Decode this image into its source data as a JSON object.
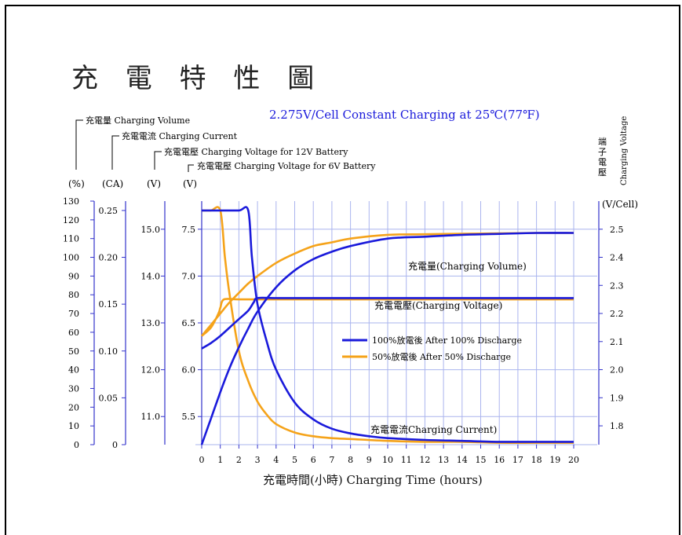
{
  "title": "充 電 特 性 圖",
  "subtitle": "2.275V/Cell Constant Charging at 25℃(77℉)",
  "axis_legends": [
    "充電量 Charging Volume",
    "充電電流 Charging Current",
    "充電電壓 Charging Voltage for 12V Battery",
    "充電電壓 Charging Voltage for 6V Battery"
  ],
  "axis_units": [
    "(%)",
    "(CA)",
    "(V)",
    "(V)"
  ],
  "right_axis_title": {
    "cjk": "端子電壓",
    "en": "Charging Voltage",
    "unit": "(V/Cell)"
  },
  "xlabel": "充電時間(小時)  Charging Time (hours)",
  "legend": [
    {
      "label": "100%放電後  After 100% Discharge",
      "color": "#1a1adb"
    },
    {
      "label": "50%放電後  After   50% Discharge",
      "color": "#f5a31a"
    }
  ],
  "curve_labels": {
    "volume": "充電量(Charging Volume)",
    "voltage": "充電電壓(Charging Voltage)",
    "current": "充電電流Charging Current)"
  },
  "colors": {
    "series_100": "#1a1adb",
    "series_50": "#f5a31a",
    "axis": "#3333cc",
    "grid": "#aab4ee"
  },
  "chart_data": {
    "type": "line",
    "x_ticks": [
      0,
      1,
      2,
      3,
      4,
      5,
      6,
      7,
      8,
      9,
      10,
      11,
      12,
      13,
      14,
      15,
      16,
      17,
      18,
      19,
      20
    ],
    "xlim": [
      0,
      20
    ],
    "grid": true,
    "legend_position": "center-right",
    "axes": {
      "volume_pct": {
        "ticks": [
          0,
          10,
          20,
          30,
          40,
          50,
          60,
          70,
          80,
          90,
          100,
          110,
          120,
          130
        ],
        "ylim": [
          0,
          130
        ]
      },
      "current_ca": {
        "ticks": [
          0,
          0.05,
          0.1,
          0.15,
          0.2,
          0.25
        ],
        "tick_labels": [
          "0",
          "0.05",
          "0.10",
          "0.15",
          "0.20",
          "0.25"
        ],
        "ylim": [
          0,
          0.26
        ]
      },
      "voltage_12v": {
        "ticks": [
          11.0,
          12.0,
          13.0,
          14.0,
          15.0
        ],
        "tick_labels": [
          "11.0",
          "12.0",
          "13.0",
          "14.0",
          "15.0"
        ],
        "ylim": [
          10.4,
          15.6
        ]
      },
      "voltage_6v": {
        "ticks": [
          5.5,
          6.0,
          6.5,
          7.0,
          7.5
        ],
        "tick_labels": [
          "5.5",
          "6.0",
          "6.5",
          "7.0",
          "7.5"
        ],
        "ylim": [
          5.2,
          7.8
        ]
      },
      "voltage_cell": {
        "ticks": [
          1.8,
          1.9,
          2.0,
          2.1,
          2.2,
          2.3,
          2.4,
          2.5
        ],
        "tick_labels": [
          "1.8",
          "1.9",
          "2.0",
          "2.1",
          "2.2",
          "2.3",
          "2.4",
          "2.5"
        ],
        "ylim": [
          1.733,
          2.6
        ]
      }
    },
    "series": [
      {
        "key": "vol100",
        "axis": "volume_pct",
        "color_key": "series_100",
        "x": [
          0,
          0.5,
          1,
          1.5,
          2,
          2.5,
          3,
          4,
          5,
          6,
          7,
          8,
          10,
          12,
          14,
          16,
          18,
          20
        ],
        "y": [
          0,
          14,
          28,
          41,
          52,
          62,
          71,
          84,
          93,
          99,
          103,
          106,
          110,
          111,
          112,
          112.5,
          113,
          113
        ]
      },
      {
        "key": "vol50",
        "axis": "volume_pct",
        "color_key": "series_50",
        "x": [
          0,
          0.5,
          1,
          1.5,
          2,
          2.5,
          3,
          4,
          5,
          6,
          7,
          8,
          10,
          12,
          14,
          16,
          18,
          20
        ],
        "y": [
          58,
          64,
          70,
          76,
          81,
          86,
          90,
          97,
          102,
          106,
          108,
          110,
          112,
          112.3,
          112.6,
          112.8,
          113,
          113
        ]
      },
      {
        "key": "cur100",
        "axis": "current_ca",
        "color_key": "series_100",
        "x": [
          0,
          1,
          2,
          2.5,
          2.7,
          3,
          3.5,
          4,
          5,
          6,
          7,
          8,
          9,
          10,
          12,
          14,
          16,
          18,
          20
        ],
        "y": [
          0.25,
          0.25,
          0.25,
          0.25,
          0.2,
          0.15,
          0.11,
          0.08,
          0.045,
          0.027,
          0.017,
          0.012,
          0.009,
          0.007,
          0.005,
          0.004,
          0.003,
          0.003,
          0.003
        ]
      },
      {
        "key": "cur50",
        "axis": "current_ca",
        "color_key": "series_50",
        "x": [
          0,
          0.5,
          1,
          1.25,
          1.5,
          2,
          2.5,
          3,
          3.5,
          4,
          5,
          6,
          7,
          8,
          10,
          12,
          14,
          16,
          18,
          20
        ],
        "y": [
          0.25,
          0.25,
          0.25,
          0.2,
          0.16,
          0.1,
          0.068,
          0.046,
          0.032,
          0.022,
          0.013,
          0.009,
          0.007,
          0.006,
          0.004,
          0.003,
          0.003,
          0.002,
          0.002,
          0.002
        ]
      },
      {
        "key": "volt100",
        "axis": "voltage_cell",
        "color_key": "series_100",
        "x": [
          0,
          0.5,
          1,
          1.5,
          2,
          2.5,
          2.8,
          3,
          4,
          6,
          8,
          10,
          12,
          14,
          16,
          18,
          20
        ],
        "y": [
          2.075,
          2.095,
          2.12,
          2.15,
          2.18,
          2.21,
          2.24,
          2.255,
          2.255,
          2.255,
          2.255,
          2.255,
          2.255,
          2.255,
          2.255,
          2.255,
          2.255
        ]
      },
      {
        "key": "volt50",
        "axis": "voltage_cell",
        "color_key": "series_50",
        "x": [
          0,
          0.5,
          0.9,
          1,
          1.2,
          2,
          4,
          6,
          8,
          10,
          12,
          14,
          16,
          18,
          20
        ],
        "y": [
          2.12,
          2.15,
          2.2,
          2.22,
          2.25,
          2.25,
          2.25,
          2.25,
          2.25,
          2.25,
          2.25,
          2.25,
          2.25,
          2.25,
          2.25
        ]
      }
    ]
  }
}
